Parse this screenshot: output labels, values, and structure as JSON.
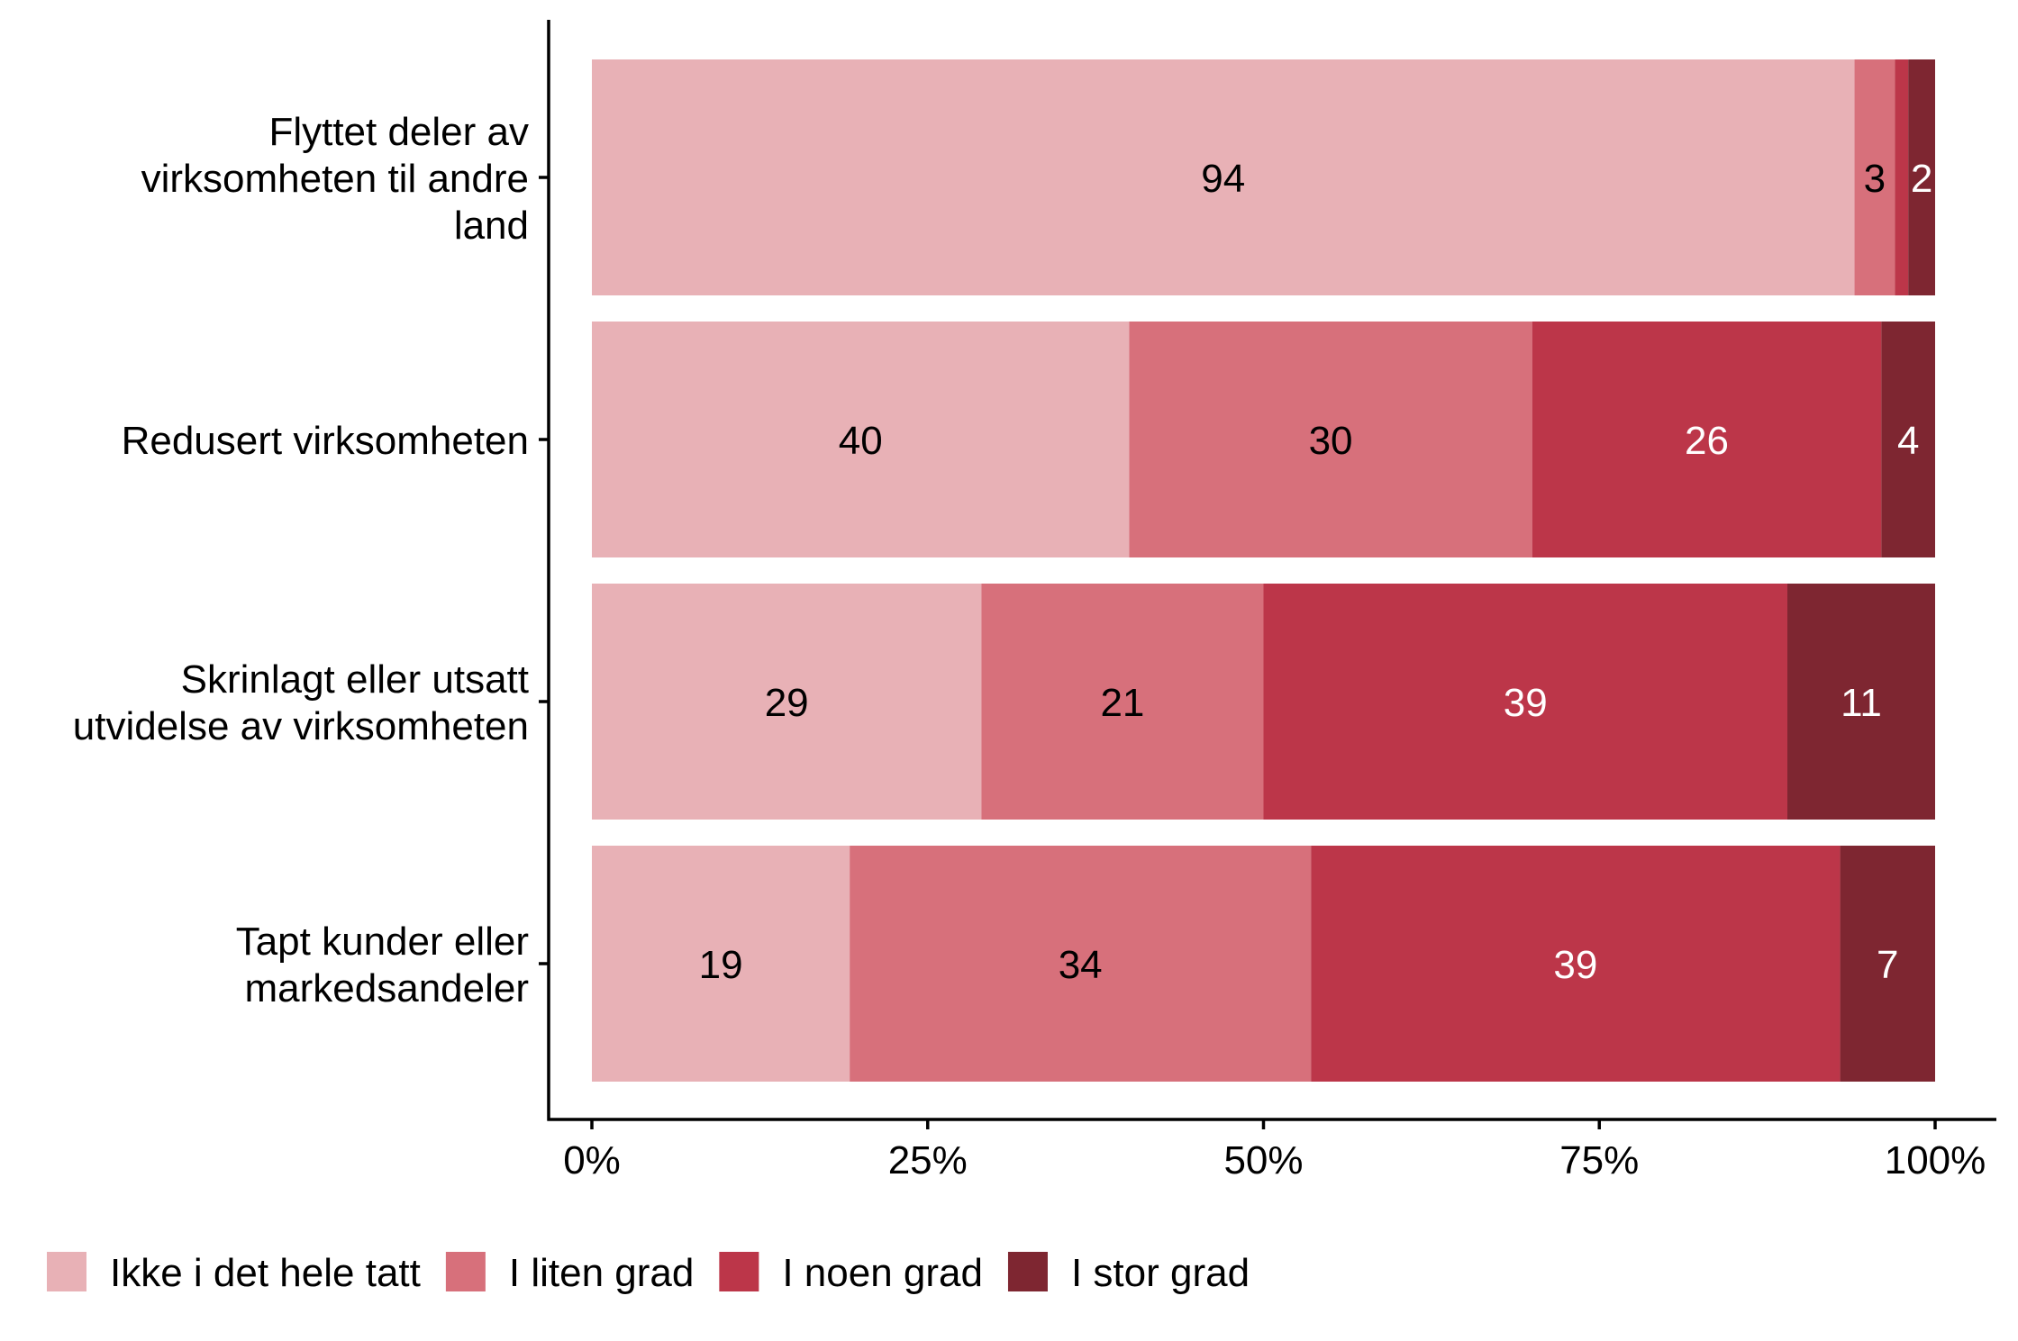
{
  "chart_data": {
    "type": "bar",
    "orientation": "horizontal",
    "stacked": true,
    "normalized": true,
    "categories": [
      "Flyttet deler av virksomheten til andre land",
      "Redusert virksomheten",
      "Skrinlagt eller utsatt utvidelse av virksomheten",
      "Tapt kunder eller markedsandeler"
    ],
    "category_lines": [
      [
        "Flyttet deler av",
        "virksomheten til andre",
        "land"
      ],
      [
        "Redusert virksomheten"
      ],
      [
        "Skrinlagt eller utsatt",
        "utvidelse av virksomheten"
      ],
      [
        "Tapt kunder eller",
        "markedsandeler"
      ]
    ],
    "series": [
      {
        "name": "Ikke i det hele tatt",
        "color": "#e8b1b6",
        "label_color": "#000000",
        "values": [
          94,
          40,
          29,
          19
        ],
        "labels": [
          "94",
          "40",
          "29",
          "19"
        ]
      },
      {
        "name": "I liten grad",
        "color": "#d7707b",
        "label_color": "#000000",
        "values": [
          3,
          30,
          21,
          34
        ],
        "labels": [
          "3",
          "30",
          "21",
          "34"
        ]
      },
      {
        "name": "I noen grad",
        "color": "#bc3649",
        "label_color": "#ffffff",
        "values": [
          1,
          26,
          39,
          39
        ],
        "labels": [
          "",
          "26",
          "39",
          "39"
        ]
      },
      {
        "name": "I stor grad",
        "color": "#7e2631",
        "label_color": "#ffffff",
        "values": [
          2,
          4,
          11,
          7
        ],
        "labels": [
          "2",
          "4",
          "11",
          "7"
        ]
      }
    ],
    "x_ticks": [
      "0%",
      "25%",
      "50%",
      "75%",
      "100%"
    ],
    "x_tick_values": [
      0,
      0.25,
      0.5,
      0.75,
      1
    ],
    "xlim": [
      0,
      1
    ],
    "title": "",
    "xlabel": "",
    "ylabel": "",
    "grid": false,
    "legend_position": "bottom-left"
  }
}
